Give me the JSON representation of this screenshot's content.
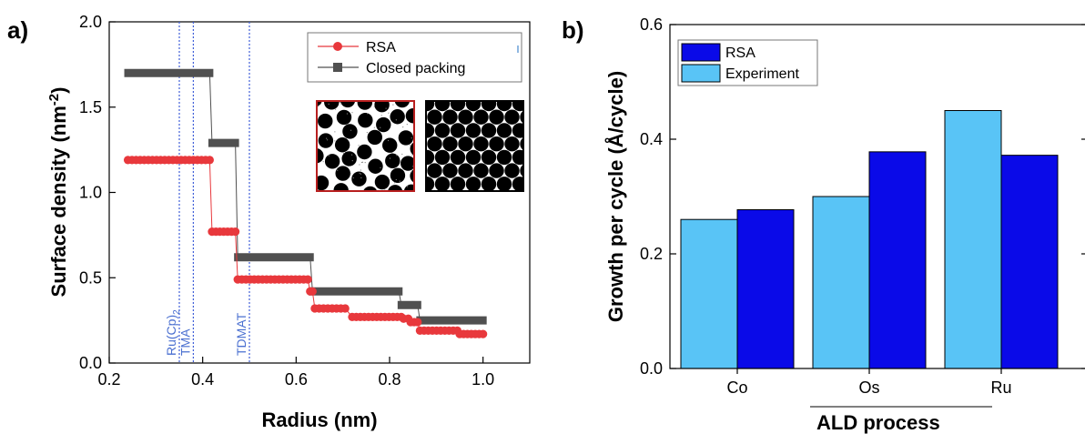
{
  "colors": {
    "rsa_red": "#e8383c",
    "closed_gray": "#505050",
    "vline_blue": "#3f5fd8",
    "bar_light": "#59c4f6",
    "bar_dark": "#0a0ae8"
  },
  "chart_data": [
    {
      "panel_label": "a)",
      "type": "line",
      "xlabel": "Radius (nm)",
      "ylabel_main": "Surface density (nm",
      "ylabel_sup": "-2",
      "ylabel_close": ")",
      "xlim": [
        0.2,
        1.1
      ],
      "ylim": [
        0.0,
        2.0
      ],
      "xticks": [
        0.2,
        0.4,
        0.6,
        0.8,
        1.0
      ],
      "xtick_labels": [
        "0.2",
        "0.4",
        "0.6",
        "0.8",
        "1.0"
      ],
      "yticks": [
        0.0,
        0.5,
        1.0,
        1.5,
        2.0
      ],
      "ytick_labels": [
        "0.0",
        "0.5",
        "1.0",
        "1.5",
        "2.0"
      ],
      "legend": {
        "placement": "top-right"
      },
      "series": [
        {
          "name": "RSA",
          "marker": "circle",
          "segments": [
            {
              "x0": 0.24,
              "x1": 0.415,
              "y": 1.19
            },
            {
              "x0": 0.42,
              "x1": 0.47,
              "y": 0.77
            },
            {
              "x0": 0.475,
              "x1": 0.625,
              "y": 0.49
            },
            {
              "x0": 0.63,
              "x1": 0.635,
              "y": 0.42
            },
            {
              "x0": 0.64,
              "x1": 0.705,
              "y": 0.32
            },
            {
              "x0": 0.72,
              "x1": 0.825,
              "y": 0.27
            },
            {
              "x0": 0.83,
              "x1": 0.84,
              "y": 0.26
            },
            {
              "x0": 0.845,
              "x1": 0.86,
              "y": 0.24
            },
            {
              "x0": 0.865,
              "x1": 0.945,
              "y": 0.19
            },
            {
              "x0": 0.95,
              "x1": 1.0,
              "y": 0.17
            }
          ]
        },
        {
          "name": "Closed packing",
          "marker": "square",
          "segments": [
            {
              "x0": 0.24,
              "x1": 0.415,
              "y": 1.7
            },
            {
              "x0": 0.42,
              "x1": 0.47,
              "y": 1.29
            },
            {
              "x0": 0.475,
              "x1": 0.63,
              "y": 0.62
            },
            {
              "x0": 0.635,
              "x1": 0.82,
              "y": 0.42
            },
            {
              "x0": 0.825,
              "x1": 0.86,
              "y": 0.34
            },
            {
              "x0": 0.865,
              "x1": 1.0,
              "y": 0.25
            }
          ]
        }
      ],
      "vlines": [
        {
          "x": 0.35,
          "label": "Ru(Cp)",
          "sub": "2"
        },
        {
          "x": 0.38,
          "label": "TMA",
          "sub": ""
        },
        {
          "x": 0.5,
          "label": "TDMAT",
          "sub": ""
        }
      ],
      "insets": [
        {
          "name": "rsa-packing-image",
          "kind": "random"
        },
        {
          "name": "closed-packing-image",
          "kind": "hex"
        }
      ]
    },
    {
      "panel_label": "b)",
      "type": "bar",
      "xlabel": "ALD process",
      "ylabel": "Growth per cycle (Å/cycle)",
      "categories": [
        "Co",
        "Os",
        "Ru"
      ],
      "ylim": [
        0.0,
        0.6
      ],
      "yticks": [
        0.0,
        0.2,
        0.4,
        0.6
      ],
      "ytick_labels": [
        "0.0",
        "0.2",
        "0.4",
        "0.6"
      ],
      "legend": {
        "placement": "top-left"
      },
      "legend_order": [
        "RSA",
        "Experiment"
      ],
      "series": [
        {
          "name": "Experiment",
          "values": [
            0.26,
            0.3,
            0.45
          ]
        },
        {
          "name": "RSA",
          "values": [
            0.277,
            0.378,
            0.372
          ]
        }
      ]
    }
  ]
}
